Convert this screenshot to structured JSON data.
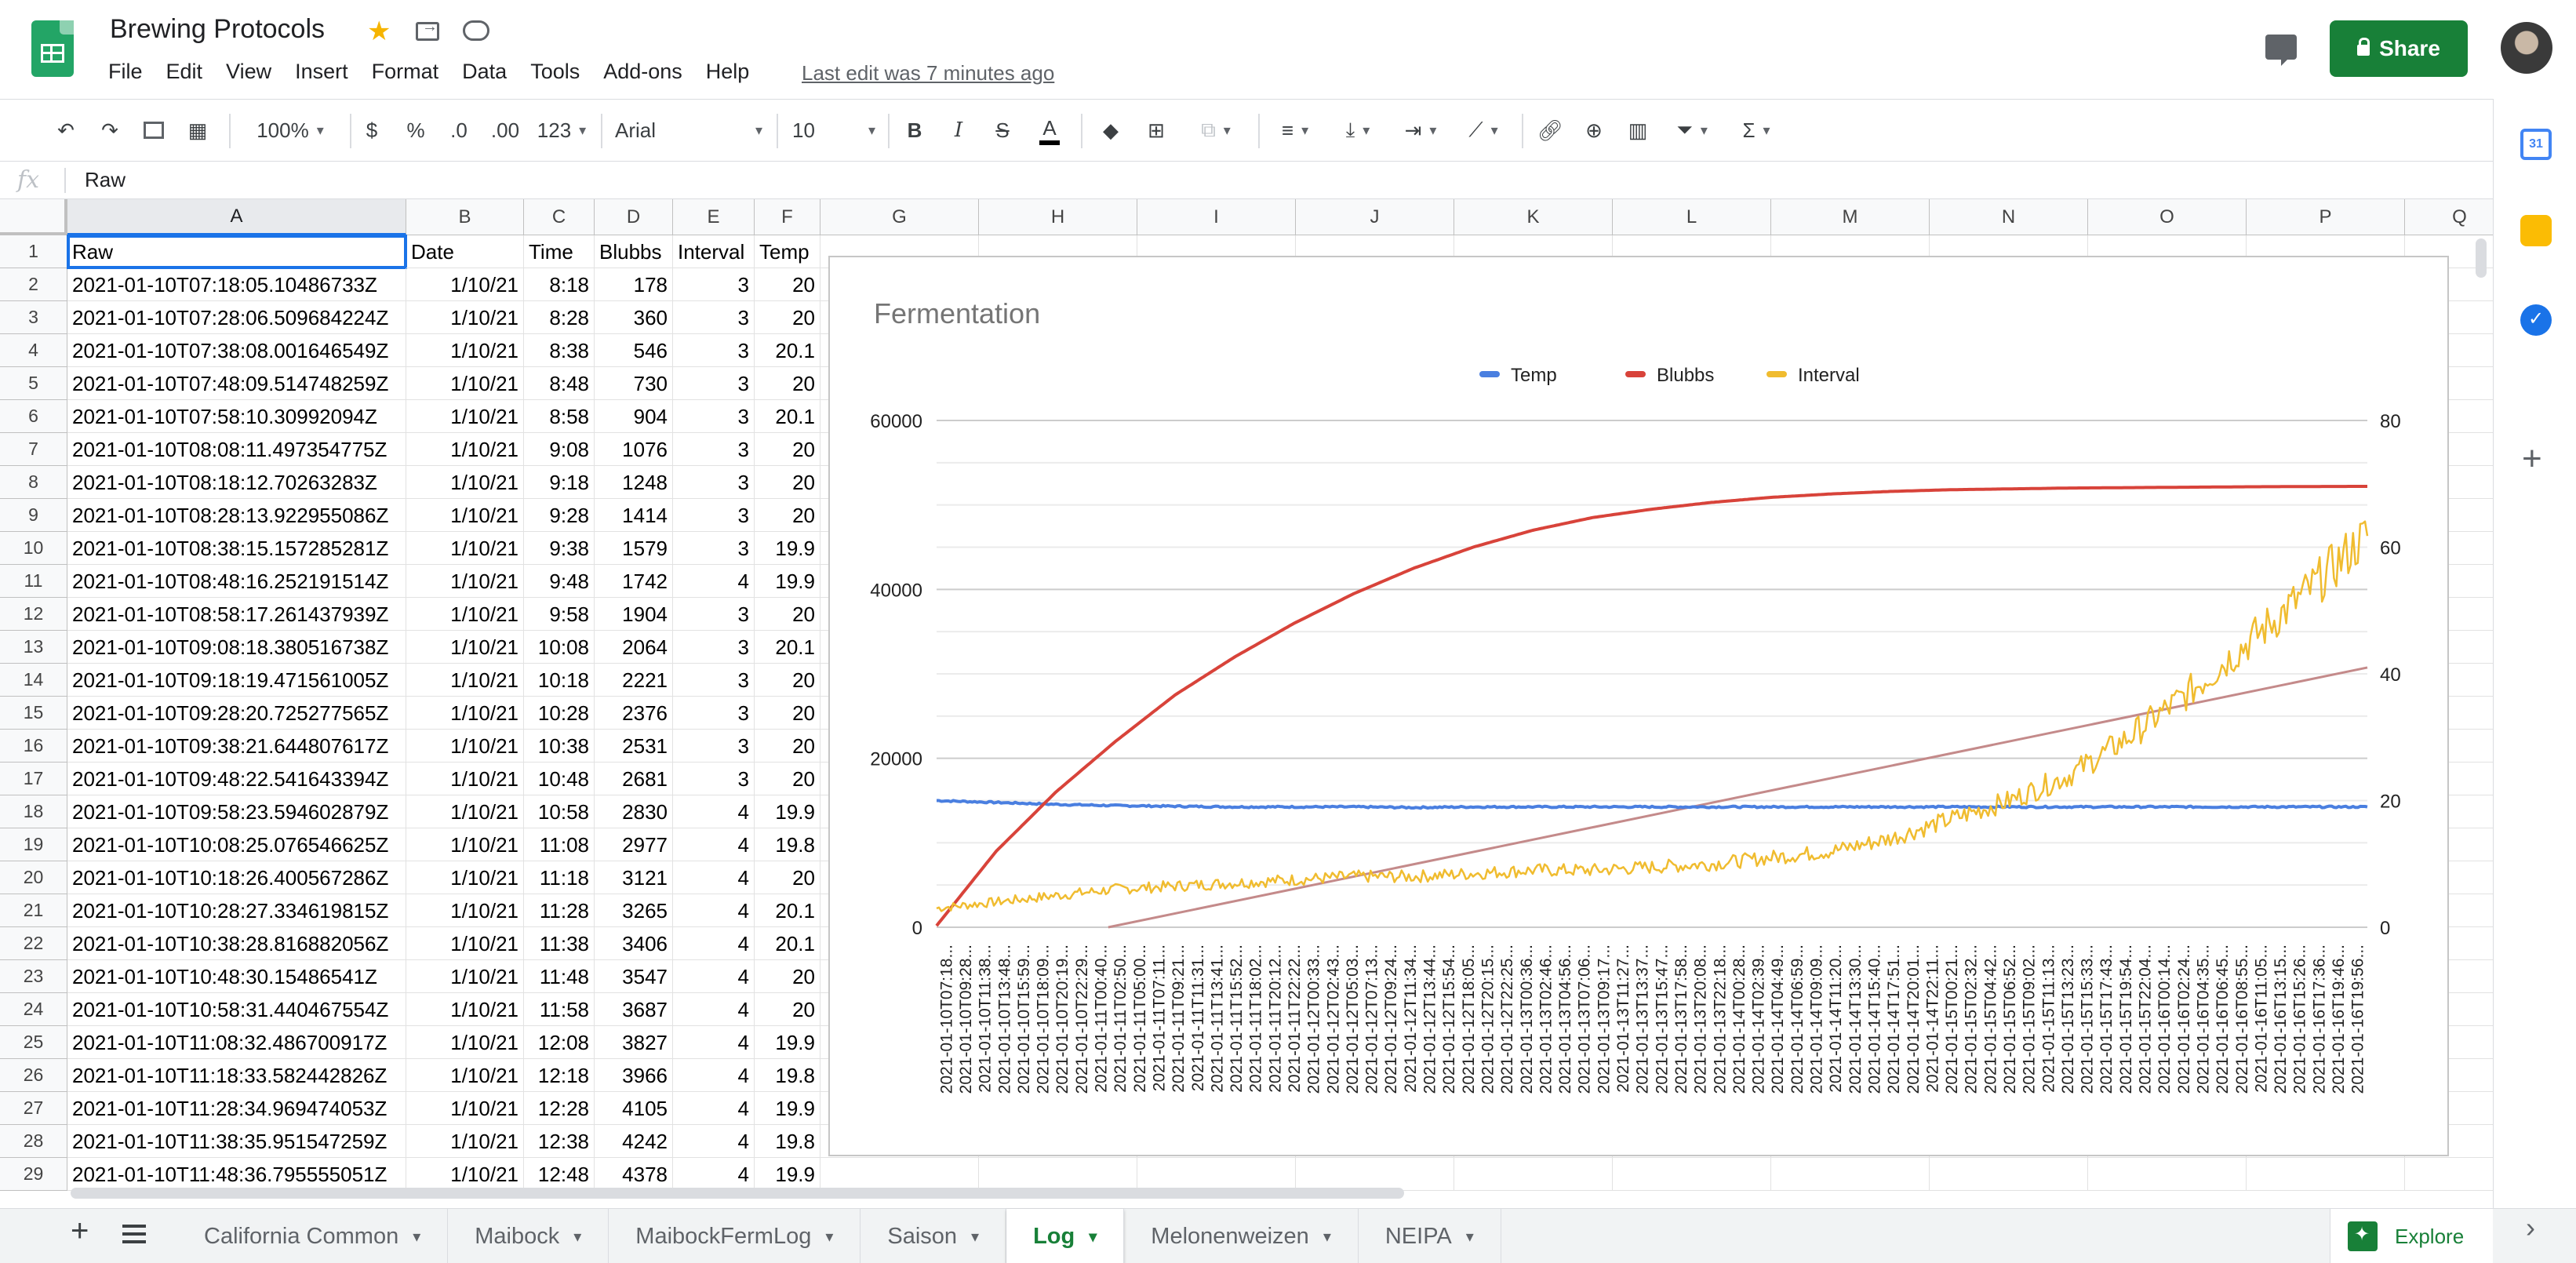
{
  "app": {
    "title": "Brewing Protocols",
    "menu": [
      "File",
      "Edit",
      "View",
      "Insert",
      "Format",
      "Data",
      "Tools",
      "Add-ons",
      "Help"
    ],
    "last_edit": "Last edit was 7 minutes ago",
    "share_label": "Share"
  },
  "toolbar": {
    "zoom": "100%",
    "currency": "$",
    "percent": "%",
    "dec_less": ".0",
    "dec_more": ".00",
    "more_formats": "123",
    "font": "Arial",
    "font_size": "10",
    "bold": "B",
    "italic": "I",
    "strike": "S",
    "text_color": "A"
  },
  "formula_bar": {
    "fx": "fx",
    "value": "Raw"
  },
  "grid": {
    "columns": [
      {
        "letter": "A"
      },
      {
        "letter": "B"
      },
      {
        "letter": "C"
      },
      {
        "letter": "D"
      },
      {
        "letter": "E"
      },
      {
        "letter": "F"
      },
      {
        "letter": "G"
      },
      {
        "letter": "H"
      },
      {
        "letter": "I"
      },
      {
        "letter": "J"
      },
      {
        "letter": "K"
      },
      {
        "letter": "L"
      },
      {
        "letter": "M"
      },
      {
        "letter": "N"
      },
      {
        "letter": "O"
      },
      {
        "letter": "P"
      },
      {
        "letter": "Q"
      }
    ],
    "rows": [
      [
        "Raw",
        "Date",
        "Time",
        "Blubbs",
        "Interval",
        "Temp"
      ],
      [
        "2021-01-10T07:18:05.10486733Z",
        "1/10/21",
        "8:18",
        "178",
        "3",
        "20"
      ],
      [
        "2021-01-10T07:28:06.509684224Z",
        "1/10/21",
        "8:28",
        "360",
        "3",
        "20"
      ],
      [
        "2021-01-10T07:38:08.001646549Z",
        "1/10/21",
        "8:38",
        "546",
        "3",
        "20.1"
      ],
      [
        "2021-01-10T07:48:09.514748259Z",
        "1/10/21",
        "8:48",
        "730",
        "3",
        "20"
      ],
      [
        "2021-01-10T07:58:10.30992094Z",
        "1/10/21",
        "8:58",
        "904",
        "3",
        "20.1"
      ],
      [
        "2021-01-10T08:08:11.497354775Z",
        "1/10/21",
        "9:08",
        "1076",
        "3",
        "20"
      ],
      [
        "2021-01-10T08:18:12.70263283Z",
        "1/10/21",
        "9:18",
        "1248",
        "3",
        "20"
      ],
      [
        "2021-01-10T08:28:13.922955086Z",
        "1/10/21",
        "9:28",
        "1414",
        "3",
        "20"
      ],
      [
        "2021-01-10T08:38:15.157285281Z",
        "1/10/21",
        "9:38",
        "1579",
        "3",
        "19.9"
      ],
      [
        "2021-01-10T08:48:16.252191514Z",
        "1/10/21",
        "9:48",
        "1742",
        "4",
        "19.9"
      ],
      [
        "2021-01-10T08:58:17.261437939Z",
        "1/10/21",
        "9:58",
        "1904",
        "3",
        "20"
      ],
      [
        "2021-01-10T09:08:18.380516738Z",
        "1/10/21",
        "10:08",
        "2064",
        "3",
        "20.1"
      ],
      [
        "2021-01-10T09:18:19.471561005Z",
        "1/10/21",
        "10:18",
        "2221",
        "3",
        "20"
      ],
      [
        "2021-01-10T09:28:20.725277565Z",
        "1/10/21",
        "10:28",
        "2376",
        "3",
        "20"
      ],
      [
        "2021-01-10T09:38:21.644807617Z",
        "1/10/21",
        "10:38",
        "2531",
        "3",
        "20"
      ],
      [
        "2021-01-10T09:48:22.541643394Z",
        "1/10/21",
        "10:48",
        "2681",
        "3",
        "20"
      ],
      [
        "2021-01-10T09:58:23.594602879Z",
        "1/10/21",
        "10:58",
        "2830",
        "4",
        "19.9"
      ],
      [
        "2021-01-10T10:08:25.076546625Z",
        "1/10/21",
        "11:08",
        "2977",
        "4",
        "19.8"
      ],
      [
        "2021-01-10T10:18:26.400567286Z",
        "1/10/21",
        "11:18",
        "3121",
        "4",
        "20"
      ],
      [
        "2021-01-10T10:28:27.334619815Z",
        "1/10/21",
        "11:28",
        "3265",
        "4",
        "20.1"
      ],
      [
        "2021-01-10T10:38:28.816882056Z",
        "1/10/21",
        "11:38",
        "3406",
        "4",
        "20.1"
      ],
      [
        "2021-01-10T10:48:30.15486541Z",
        "1/10/21",
        "11:48",
        "3547",
        "4",
        "20"
      ],
      [
        "2021-01-10T10:58:31.440467554Z",
        "1/10/21",
        "11:58",
        "3687",
        "4",
        "20"
      ],
      [
        "2021-01-10T11:08:32.486700917Z",
        "1/10/21",
        "12:08",
        "3827",
        "4",
        "19.9"
      ],
      [
        "2021-01-10T11:18:33.582442826Z",
        "1/10/21",
        "12:18",
        "3966",
        "4",
        "19.8"
      ],
      [
        "2021-01-10T11:28:34.969474053Z",
        "1/10/21",
        "12:28",
        "4105",
        "4",
        "19.9"
      ],
      [
        "2021-01-10T11:38:35.951547259Z",
        "1/10/21",
        "12:38",
        "4242",
        "4",
        "19.8"
      ],
      [
        "2021-01-10T11:48:36.795555051Z",
        "1/10/21",
        "12:48",
        "4378",
        "4",
        "19.9"
      ]
    ]
  },
  "sheets": [
    "California Common",
    "Maibock",
    "MaibockFermLog",
    "Saison",
    "Log",
    "Melonenweizen",
    "NEIPA"
  ],
  "active_sheet": "Log",
  "explore_label": "Explore",
  "side_panel": {
    "calendar_label": "31"
  },
  "colors": {
    "accent": "#188038",
    "selection": "#1a73e8",
    "temp": "#4a7fe0",
    "blubbs": "#d8433a",
    "interval": "#f0bc2f",
    "trend": "#c48a8a"
  },
  "chart_data": {
    "type": "line",
    "title": "Fermentation",
    "legend_position": "top",
    "series": [
      {
        "name": "Temp",
        "axis": "right",
        "values": [
          20,
          19.7,
          19.4,
          19.2,
          19.1,
          19,
          19,
          19,
          18.9,
          19,
          19,
          19,
          19,
          19,
          19,
          19,
          19,
          19,
          19,
          19,
          19,
          19,
          19,
          19,
          19
        ]
      },
      {
        "name": "Blubbs",
        "axis": "left",
        "values": [
          178,
          9000,
          16000,
          22000,
          27500,
          32000,
          36000,
          39500,
          42500,
          45000,
          47000,
          48500,
          49500,
          50300,
          50900,
          51300,
          51600,
          51800,
          51900,
          52000,
          52050,
          52100,
          52150,
          52180,
          52200
        ]
      },
      {
        "name": "Interval",
        "axis": "right",
        "values": [
          3,
          4,
          5,
          6,
          6.5,
          7,
          7.5,
          8,
          8,
          8.5,
          9,
          9,
          9.5,
          10,
          11,
          12,
          14,
          17,
          20,
          24,
          30,
          37,
          45,
          53,
          62
        ]
      }
    ],
    "trendline": {
      "axis": "right",
      "from": -2,
      "to": 41
    },
    "x_tick_labels": [
      "2021-01-10T07:18...",
      "2021-01-10T09:28...",
      "2021-01-10T11:38...",
      "2021-01-10T13:48...",
      "2021-01-10T15:59...",
      "2021-01-10T18:09...",
      "2021-01-10T20:19...",
      "2021-01-10T22:29...",
      "2021-01-11T00:40...",
      "2021-01-11T02:50...",
      "2021-01-11T05:00...",
      "2021-01-11T07:11...",
      "2021-01-11T09:21...",
      "2021-01-11T11:31...",
      "2021-01-11T13:41...",
      "2021-01-11T15:52...",
      "2021-01-11T18:02...",
      "2021-01-11T20:12...",
      "2021-01-11T22:22...",
      "2021-01-12T00:33...",
      "2021-01-12T02:43...",
      "2021-01-12T05:03...",
      "2021-01-12T07:13...",
      "2021-01-12T09:24...",
      "2021-01-12T11:34...",
      "2021-01-12T13:44...",
      "2021-01-12T15:54...",
      "2021-01-12T18:05...",
      "2021-01-12T20:15...",
      "2021-01-12T22:25...",
      "2021-01-13T00:36...",
      "2021-01-13T02:46...",
      "2021-01-13T04:56...",
      "2021-01-13T07:06...",
      "2021-01-13T09:17...",
      "2021-01-13T11:27...",
      "2021-01-13T13:37...",
      "2021-01-13T15:47...",
      "2021-01-13T17:58...",
      "2021-01-13T20:08...",
      "2021-01-13T22:18...",
      "2021-01-14T00:28...",
      "2021-01-14T02:39...",
      "2021-01-14T04:49...",
      "2021-01-14T06:59...",
      "2021-01-14T09:09...",
      "2021-01-14T11:20...",
      "2021-01-14T13:30...",
      "2021-01-14T15:40...",
      "2021-01-14T17:51...",
      "2021-01-14T20:01...",
      "2021-01-14T22:11...",
      "2021-01-15T00:21...",
      "2021-01-15T02:32...",
      "2021-01-15T04:42...",
      "2021-01-15T06:52...",
      "2021-01-15T09:02...",
      "2021-01-15T11:13...",
      "2021-01-15T13:23...",
      "2021-01-15T15:33...",
      "2021-01-15T17:43...",
      "2021-01-15T19:54...",
      "2021-01-15T22:04...",
      "2021-01-16T00:14...",
      "2021-01-16T02:24...",
      "2021-01-16T04:35...",
      "2021-01-16T06:45...",
      "2021-01-16T08:55...",
      "2021-01-16T11:05...",
      "2021-01-16T13:15...",
      "2021-01-16T15:26...",
      "2021-01-16T17:36...",
      "2021-01-16T19:46...",
      "2021-01-16T19:56..."
    ],
    "y_left": {
      "min": 0,
      "max": 60000,
      "ticks": [
        0,
        20000,
        40000,
        60000
      ],
      "tick_labels": [
        "0",
        "20000",
        "40000",
        "60000"
      ]
    },
    "y_right": {
      "min": 0,
      "max": 80,
      "ticks": [
        0,
        20,
        40,
        60,
        80
      ],
      "tick_labels": [
        "0",
        "20",
        "40",
        "60",
        "80"
      ]
    },
    "grid": true
  }
}
